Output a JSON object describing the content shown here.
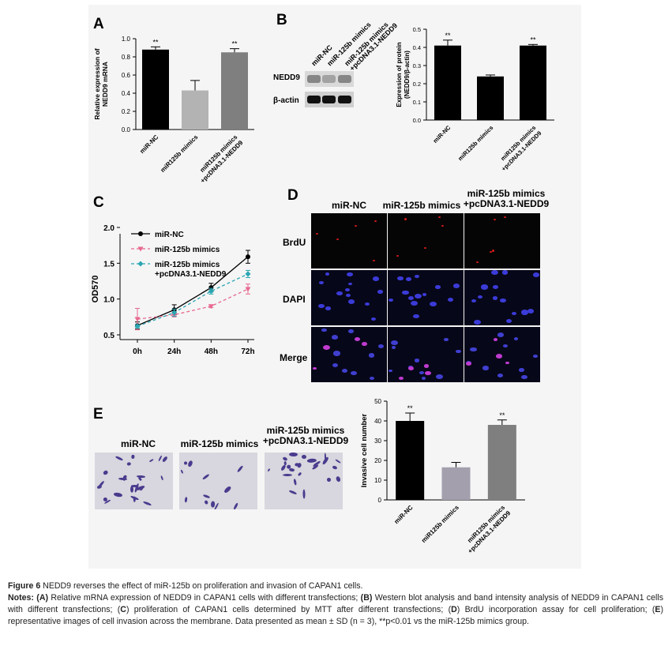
{
  "panels": {
    "a": {
      "letter": "A"
    },
    "b": {
      "letter": "B",
      "wb_lanes": [
        "miR-NC",
        "miR-125b mimics",
        "miR-125b mimics\n+pcDNA3.1-NEDD9"
      ],
      "wb_rows": [
        "NEDD9",
        "β-actin"
      ]
    },
    "c": {
      "letter": "C"
    },
    "d": {
      "letter": "D",
      "columns": [
        "miR-NC",
        "miR-125b mimics",
        "miR-125b mimics\n+pcDNA3.1-NEDD9"
      ],
      "rows": [
        "BrdU",
        "DAPI",
        "Merge"
      ]
    },
    "e": {
      "letter": "E",
      "image_labels": [
        "miR-NC",
        "miR-125b mimics",
        "miR-125b mimics\n+pcDNA3.1-NEDD9"
      ]
    }
  },
  "chart_data": [
    {
      "id": "A",
      "type": "bar",
      "categories": [
        "miR-NC",
        "miR125b mimics",
        "miR125b mimics\n+pcDNA3.1-NEDD9"
      ],
      "values": [
        0.88,
        0.43,
        0.85
      ],
      "errors": [
        0.03,
        0.11,
        0.04
      ],
      "significance": [
        "**",
        "",
        "**"
      ],
      "bar_colors": [
        "#000000",
        "#b3b3b3",
        "#7f7f7f"
      ],
      "ylabel": "Relative expression of\nNEDD9 mRNA",
      "ylim": [
        0,
        1.0
      ],
      "yticks": [
        "0.0",
        "0.2",
        "0.4",
        "0.6",
        "0.8",
        "1.0"
      ]
    },
    {
      "id": "B",
      "type": "bar",
      "categories": [
        "miR-NC",
        "miR125b mimics",
        "miR125b mimics\n+pcDNA3.1-NEDD9"
      ],
      "values": [
        0.41,
        0.24,
        0.41
      ],
      "errors": [
        0.03,
        0.008,
        0.006
      ],
      "significance": [
        "**",
        "",
        "**"
      ],
      "bar_colors": [
        "#000000",
        "#000000",
        "#000000"
      ],
      "ylabel": "Expression of protein\n(NEDD9/β-actin)",
      "ylim": [
        0,
        0.5
      ],
      "yticks": [
        "0.0",
        "0.1",
        "0.2",
        "0.3",
        "0.4",
        "0.5"
      ]
    },
    {
      "id": "C",
      "type": "line",
      "x": [
        "0h",
        "24h",
        "48h",
        "72h"
      ],
      "ylabel": "OD570",
      "ylim": [
        0.5,
        2.0
      ],
      "yticks": [
        "0.5",
        "1.0",
        "1.5",
        "2.0"
      ],
      "series": [
        {
          "name": "miR-NC",
          "values": [
            0.63,
            0.85,
            1.16,
            1.59
          ],
          "errors": [
            0.05,
            0.07,
            0.06,
            0.09
          ],
          "color": "#000000",
          "marker": "circle",
          "dash": ""
        },
        {
          "name": "miR-125b mimics",
          "values": [
            0.72,
            0.78,
            0.9,
            1.14
          ],
          "errors": [
            0.15,
            0.03,
            0.02,
            0.07
          ],
          "color": "#e8688e",
          "marker": "triangle-down",
          "dash": "4,3"
        },
        {
          "name": "miR-125b mimics\n+pcDNA3.1-NEDD9",
          "values": [
            0.62,
            0.81,
            1.11,
            1.35
          ],
          "errors": [
            0.02,
            0.05,
            0.04,
            0.05
          ],
          "color": "#2aa6b3",
          "marker": "diamond",
          "dash": "4,3"
        }
      ]
    },
    {
      "id": "E",
      "type": "bar",
      "categories": [
        "miR-NC",
        "miR125b mimics",
        "miR125b mimics\n+pcDNA3.1-NEDD9"
      ],
      "values": [
        40,
        16.5,
        38
      ],
      "errors": [
        4,
        2.5,
        2.5
      ],
      "significance": [
        "**",
        "",
        "**"
      ],
      "bar_colors": [
        "#000000",
        "#a39fad",
        "#7f7f7f"
      ],
      "ylabel": "Invasive cell number",
      "ylim": [
        0,
        50
      ],
      "yticks": [
        "0",
        "10",
        "20",
        "30",
        "40",
        "50"
      ]
    }
  ],
  "caption": {
    "fig_label": "Figure 6",
    "fig_text": " NEDD9 reverses the effect of miR-125b on proliferation and invasion of CAPAN1 cells.",
    "notes_label": "Notes:",
    "notes_parts": [
      {
        "b": "(A)",
        "t": " Relative mRNA expression of NEDD9 in CAPAN1 cells with different transfections; "
      },
      {
        "b": "(B)",
        "t": " Western blot analysis and band intensity analysis of NEDD9 in CAPAN1 cells with different transfections; ("
      },
      {
        "b": "C",
        "t": ") proliferation of CAPAN1 cells determined by MTT after different transfections; ("
      },
      {
        "b": "D",
        "t": ") BrdU incorporation assay for cell proliferation; ("
      },
      {
        "b": "E",
        "t": ") representative images of cell invasion across the membrane. Data presented as mean ± SD (n = 3), **p<0.01 vs the miR-125b mimics group."
      }
    ]
  }
}
